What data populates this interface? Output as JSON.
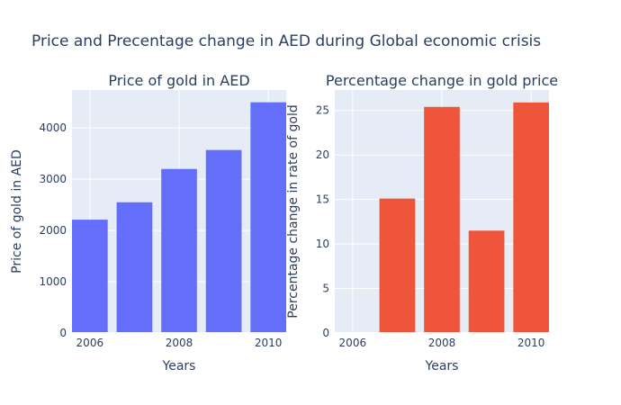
{
  "title": "Price and Precentage change in AED during Global economic crisis",
  "chart_data": [
    {
      "type": "bar",
      "title": "Price of gold in AED",
      "xlabel": "Years",
      "ylabel": "Price of gold in AED",
      "x": [
        2006,
        2007,
        2008,
        2009,
        2010
      ],
      "values": [
        2210,
        2550,
        3200,
        3570,
        4500
      ],
      "xlim": [
        2005.6,
        2010.4
      ],
      "ylim": [
        0,
        4740
      ],
      "xticks": [
        2006,
        2008,
        2010
      ],
      "yticks": [
        0,
        1000,
        2000,
        3000,
        4000
      ],
      "color": "#636efa",
      "grid": true,
      "background": "#e5ecf6"
    },
    {
      "type": "bar",
      "title": "Percentage change in gold price",
      "xlabel": "Years",
      "ylabel": "Percentage change in rate of gold",
      "x": [
        2006,
        2007,
        2008,
        2009,
        2010
      ],
      "values": [
        0,
        15.1,
        25.4,
        11.5,
        25.9
      ],
      "xlim": [
        2005.6,
        2010.4
      ],
      "ylim": [
        0,
        27.3
      ],
      "xticks": [
        2006,
        2008,
        2010
      ],
      "yticks": [
        0,
        5,
        10,
        15,
        20,
        25
      ],
      "color": "#ef553b",
      "grid": true,
      "background": "#e5ecf6"
    }
  ]
}
